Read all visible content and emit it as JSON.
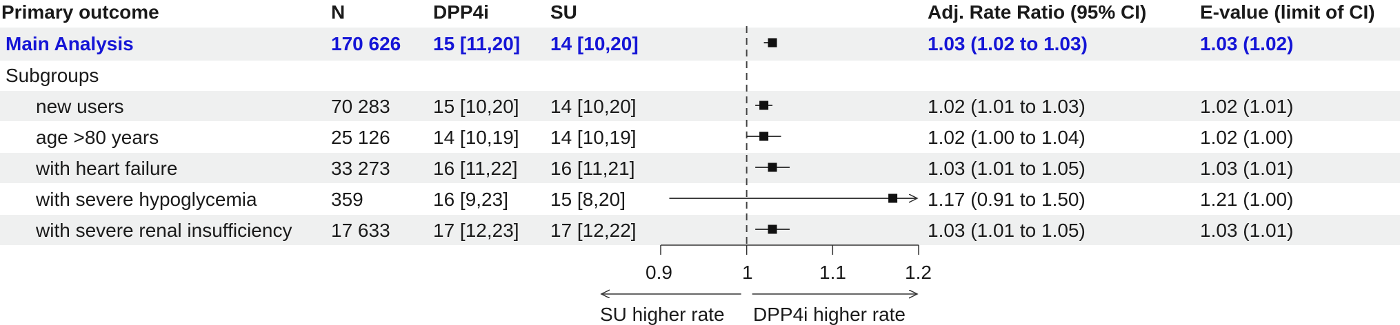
{
  "header": {
    "outcome": "Primary outcome",
    "n": "N",
    "dpp4i": "DPP4i",
    "su": "SU",
    "ratio": "Adj. Rate Ratio (95% CI)",
    "evalue": "E-value (limit of CI)"
  },
  "subgroups_label": "Subgroups",
  "colors": {
    "highlight": "#1515d6",
    "stripe": "#eff0f0",
    "text": "#1a1a1a"
  },
  "chart_data": {
    "type": "forest",
    "xlim": [
      0.9,
      1.2
    ],
    "ticks": [
      "0.9",
      "1",
      "1.1",
      "1.2"
    ],
    "tick_values": [
      0.9,
      1.0,
      1.1,
      1.2
    ],
    "reference": 1.0,
    "arrow_left": "SU higher rate",
    "arrow_right": "DPP4i higher rate",
    "rows": [
      {
        "label": "Main Analysis",
        "n": "170 626",
        "dpp4i": "15 [11,20]",
        "su": "14 [10,20]",
        "estimate": 1.03,
        "lower": 1.02,
        "upper": 1.03,
        "ratio_text": "1.03 (1.02 to 1.03)",
        "evalue_text": "1.03 (1.02)",
        "highlight": true,
        "indent": false
      },
      {
        "label": "new users",
        "n": "70 283",
        "dpp4i": "15 [10,20]",
        "su": "14 [10,20]",
        "estimate": 1.02,
        "lower": 1.01,
        "upper": 1.03,
        "ratio_text": "1.02 (1.01 to 1.03)",
        "evalue_text": "1.02 (1.01)",
        "highlight": false,
        "indent": true
      },
      {
        "label": "age >80 years",
        "n": "25 126",
        "dpp4i": "14 [10,19]",
        "su": "14 [10,19]",
        "estimate": 1.02,
        "lower": 1.0,
        "upper": 1.04,
        "ratio_text": "1.02 (1.00 to 1.04)",
        "evalue_text": "1.02 (1.00)",
        "highlight": false,
        "indent": true
      },
      {
        "label": "with heart failure",
        "n": "33 273",
        "dpp4i": "16 [11,22]",
        "su": "16 [11,21]",
        "estimate": 1.03,
        "lower": 1.01,
        "upper": 1.05,
        "ratio_text": "1.03 (1.01 to 1.05)",
        "evalue_text": "1.03 (1.01)",
        "highlight": false,
        "indent": true
      },
      {
        "label": "with severe hypoglycemia",
        "n": "359",
        "dpp4i": "16 [9,23]",
        "su": "15 [8,20]",
        "estimate": 1.17,
        "lower": 0.91,
        "upper": 1.5,
        "ratio_text": "1.17 (0.91 to 1.50)",
        "evalue_text": "1.21 (1.00)",
        "highlight": false,
        "indent": true
      },
      {
        "label": "with severe renal insufficiency",
        "n": "17 633",
        "dpp4i": "17 [12,23]",
        "su": "17 [12,22]",
        "estimate": 1.03,
        "lower": 1.01,
        "upper": 1.05,
        "ratio_text": "1.03 (1.01 to 1.05)",
        "evalue_text": "1.03 (1.01)",
        "highlight": false,
        "indent": true
      }
    ]
  }
}
